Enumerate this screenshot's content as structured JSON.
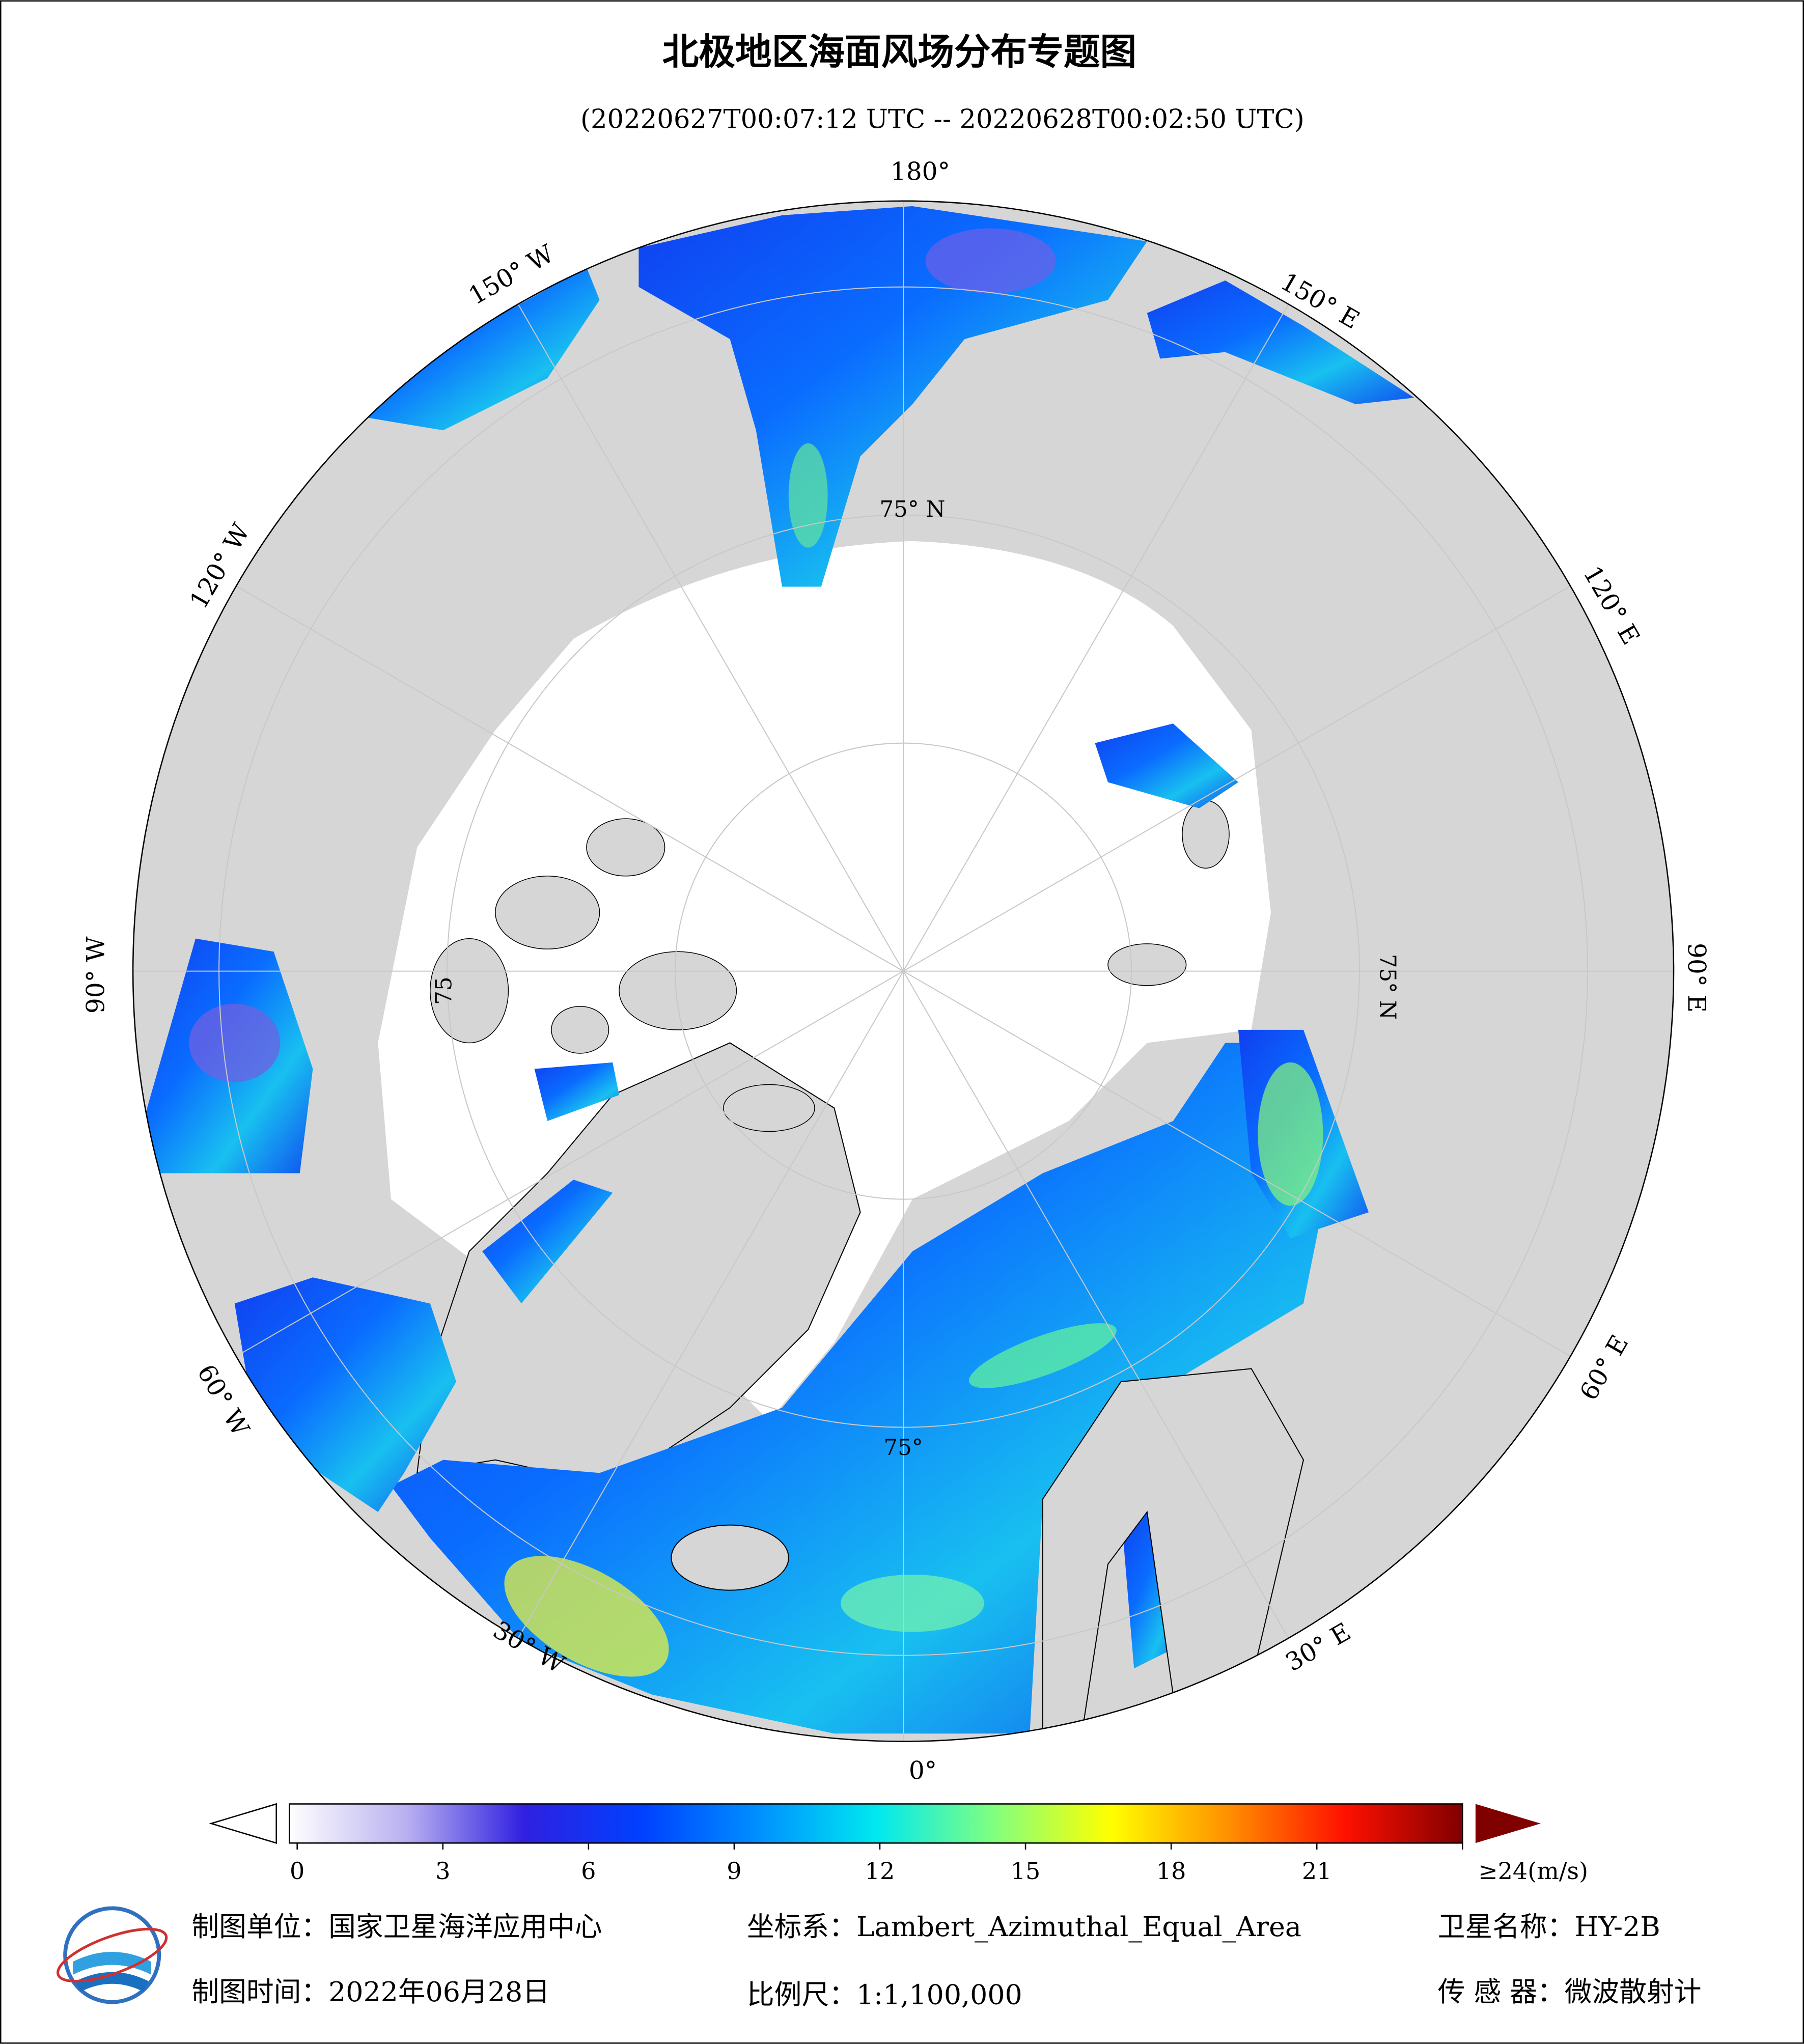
{
  "title": "北极地区海面风场分布专题图",
  "subtitle": "(20220627T00:07:12 UTC -- 20220628T00:02:50 UTC)",
  "map": {
    "longitude_labels": [
      "180°",
      "150° E",
      "120° E",
      "90° E",
      "60° E",
      "30° E",
      "0°",
      "30° W",
      "60° W",
      "90° W",
      "120° W",
      "150° W"
    ],
    "latitude_labels": [
      "75° N",
      "75° N",
      "75°",
      "75"
    ]
  },
  "colorbar": {
    "range": [
      0,
      24
    ],
    "ticks": [
      0,
      3,
      6,
      9,
      12,
      15,
      18,
      21,
      {
        "value": 24,
        "label": "≥24(m/s)"
      }
    ],
    "colors": [
      "#ffffff",
      "#b8b0f0",
      "#3020e0",
      "#0040ff",
      "#0090ff",
      "#00e8f0",
      "#80ff80",
      "#ffff00",
      "#ff9000",
      "#ff1000",
      "#800000"
    ]
  },
  "footer": {
    "unit": "制图单位：国家卫星海洋应用中心",
    "crs": "坐标系：Lambert_Azimuthal_Equal_Area",
    "satellite": "卫星名称：HY-2B",
    "date": "制图时间：2022年06月28日",
    "scale": "比例尺：1:1,100,000",
    "sensor": "传 感 器：微波散射计"
  }
}
